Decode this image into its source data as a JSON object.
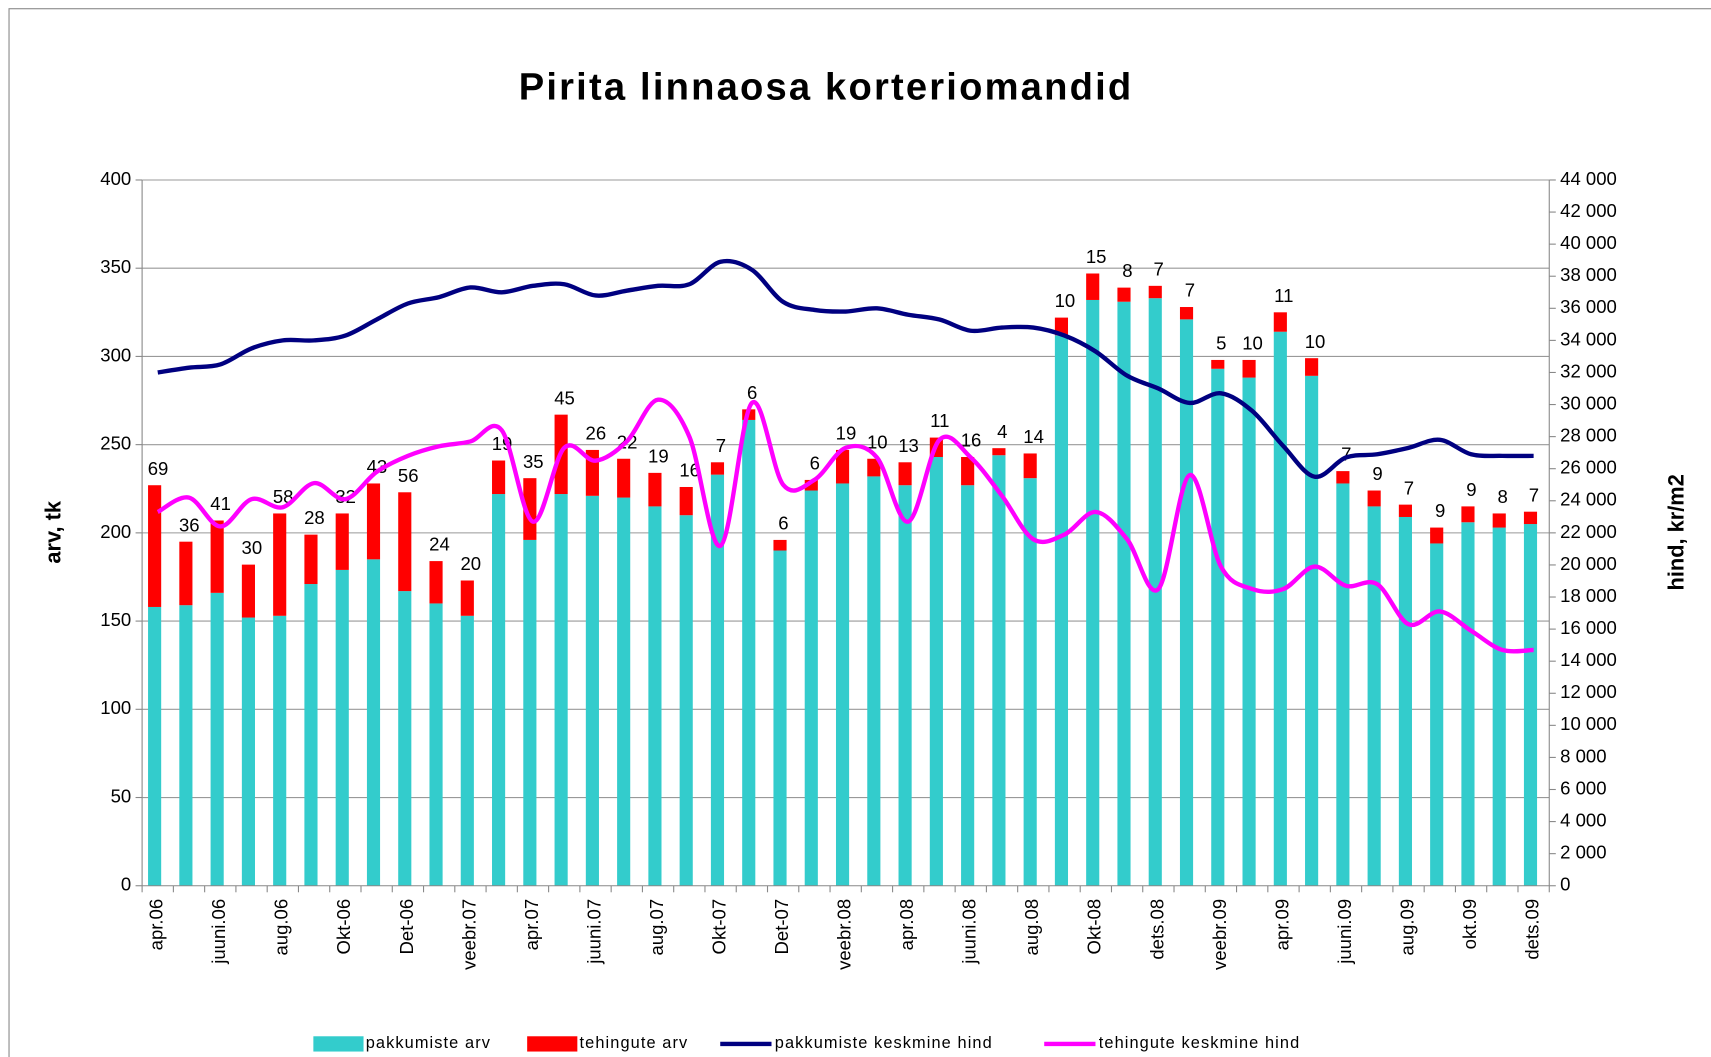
{
  "chart_data": {
    "type": "bar",
    "stacked": true,
    "title": "Pirita linnaosa korteriomandid",
    "y_label": "arv, tk",
    "y2_label": "hind, kr/m2",
    "categories": [
      "apr.06",
      null,
      "juuni.06",
      null,
      "aug.06",
      null,
      "Okt-06",
      null,
      "Det-06",
      null,
      "veebr.07",
      null,
      "apr.07",
      null,
      "juuni.07",
      null,
      "aug.07",
      null,
      "Okt-07",
      null,
      "Det-07",
      null,
      "veebr.08",
      null,
      "apr.08",
      null,
      "juuni.08",
      null,
      "aug.08",
      null,
      "Okt-08",
      null,
      "dets.08",
      null,
      "veebr.09",
      null,
      "apr.09",
      null,
      "juuni.09",
      null,
      "aug.09",
      null,
      "okt.09",
      null,
      "dets.09"
    ],
    "ylim": [
      0,
      400
    ],
    "yticks": [
      0,
      50,
      100,
      150,
      200,
      250,
      300,
      350,
      400
    ],
    "y2lim": [
      0,
      44000
    ],
    "y2ticks": [
      0,
      {
        "value": 2000,
        "label": "2 000"
      },
      {
        "value": 4000,
        "label": "4 000"
      },
      {
        "value": 6000,
        "label": "6 000"
      },
      {
        "value": 8000,
        "label": "8 000"
      },
      {
        "value": 10000,
        "label": "10 000"
      },
      {
        "value": 12000,
        "label": "12 000"
      },
      {
        "value": 14000,
        "label": "14 000"
      },
      {
        "value": 16000,
        "label": "16 000"
      },
      {
        "value": 18000,
        "label": "18 000"
      },
      {
        "value": 20000,
        "label": "20 000"
      },
      {
        "value": 22000,
        "label": "22 000"
      },
      {
        "value": 24000,
        "label": "24 000"
      },
      {
        "value": 26000,
        "label": "26 000"
      },
      {
        "value": 28000,
        "label": "28 000"
      },
      {
        "value": 30000,
        "label": "30 000"
      },
      {
        "value": 32000,
        "label": "32 000"
      },
      {
        "value": 34000,
        "label": "34 000"
      },
      {
        "value": 36000,
        "label": "36 000"
      },
      {
        "value": 38000,
        "label": "38 000"
      },
      {
        "value": 40000,
        "label": "40 000"
      },
      {
        "value": 42000,
        "label": "42 000"
      },
      {
        "value": 44000,
        "label": "44 000"
      }
    ],
    "grid": true,
    "legend": "bottom",
    "series": [
      {
        "name": "pakkumiste arv",
        "type": "bar",
        "color": "#33CCCC",
        "values": [
          158,
          159,
          166,
          152,
          153,
          171,
          179,
          185,
          167,
          160,
          153,
          222,
          196,
          222,
          221,
          220,
          215,
          210,
          233,
          264,
          190,
          224,
          228,
          232,
          227,
          243,
          227,
          244,
          231,
          312,
          332,
          331,
          333,
          321,
          293,
          288,
          314,
          289,
          228,
          215,
          209,
          194,
          206,
          203,
          205
        ]
      },
      {
        "name": "tehingute arv",
        "type": "bar",
        "color": "#FF0000",
        "show_labels": true,
        "values": [
          69,
          36,
          41,
          30,
          58,
          28,
          32,
          43,
          56,
          24,
          20,
          19,
          35,
          45,
          26,
          22,
          19,
          16,
          7,
          6,
          6,
          6,
          19,
          10,
          13,
          11,
          16,
          4,
          14,
          10,
          15,
          8,
          7,
          7,
          5,
          10,
          11,
          10,
          7,
          9,
          7,
          9,
          9,
          8,
          7
        ]
      },
      {
        "name": "pakkumiste keskmine hind",
        "type": "line",
        "axis": "y2",
        "color": "#000080",
        "values": [
          32000,
          32300,
          32500,
          33500,
          34000,
          34000,
          34300,
          35300,
          36300,
          36700,
          37300,
          37000,
          37400,
          37500,
          36800,
          37100,
          37400,
          37500,
          38900,
          38400,
          36400,
          35900,
          35800,
          36000,
          35600,
          35300,
          34600,
          34800,
          34800,
          34300,
          33300,
          31800,
          31000,
          30100,
          30700,
          29600,
          27400,
          25500,
          26700,
          26900,
          27300,
          27800,
          26900,
          26800,
          26800
        ]
      },
      {
        "name": "tehingute keskmine hind",
        "type": "line",
        "axis": "y2",
        "color": "#FF00FF",
        "values": [
          23300,
          24200,
          22400,
          24100,
          23600,
          25100,
          24100,
          25800,
          26800,
          27400,
          27700,
          28400,
          22700,
          27300,
          26500,
          27700,
          30300,
          28000,
          21200,
          30100,
          25000,
          25300,
          27300,
          26700,
          22700,
          27800,
          26700,
          24300,
          21600,
          21900,
          23300,
          21600,
          18500,
          25600,
          19900,
          18500,
          18500,
          19900,
          18700,
          18800,
          16300,
          17100,
          15900,
          14700,
          14700
        ]
      }
    ]
  }
}
